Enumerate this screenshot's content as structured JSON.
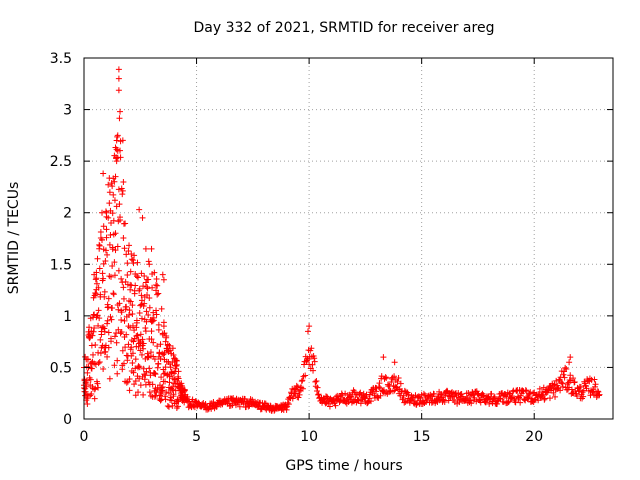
{
  "chart_data": {
    "type": "scatter",
    "title": "Day 332 of 2021, SRMTID for receiver areg",
    "xlabel": "GPS time / hours",
    "ylabel": "SRMTID / TECUs",
    "xlim": [
      0,
      23.5
    ],
    "ylim": [
      0,
      3.5
    ],
    "grid": true,
    "marker": "+",
    "marker_color": "#ff0000",
    "x_ticks": [
      0,
      5,
      10,
      15,
      20
    ],
    "x_tick_labels": [
      "0",
      "5",
      "10",
      "15",
      "20"
    ],
    "y_ticks": [
      0,
      0.5,
      1,
      1.5,
      2,
      2.5,
      3,
      3.5
    ],
    "y_tick_labels": [
      "0",
      "0.5",
      "1",
      "1.5",
      "2",
      "2.5",
      "3",
      "3.5"
    ],
    "series": [
      {
        "name": "areg",
        "profile_x": [
          0.0,
          0.3,
          0.6,
          0.9,
          1.2,
          1.4,
          1.6,
          1.8,
          2.0,
          2.3,
          2.6,
          2.9,
          3.2,
          3.5,
          3.8,
          4.2,
          4.6,
          5.0,
          5.5,
          6.0,
          6.5,
          7.0,
          7.5,
          8.0,
          8.5,
          9.0,
          9.3,
          9.6,
          9.8,
          10.0,
          10.2,
          10.5,
          11.0,
          11.5,
          12.0,
          12.5,
          13.0,
          13.3,
          13.6,
          13.9,
          14.2,
          14.6,
          15.0,
          15.5,
          16.0,
          16.5,
          17.0,
          17.5,
          18.0,
          18.5,
          19.0,
          19.5,
          20.0,
          20.5,
          21.0,
          21.3,
          21.6,
          22.0,
          22.3,
          22.6,
          22.9
        ],
        "profile_y": [
          0.3,
          0.6,
          0.9,
          1.2,
          1.4,
          1.6,
          1.9,
          1.4,
          1.0,
          0.9,
          0.8,
          0.9,
          0.8,
          0.6,
          0.45,
          0.3,
          0.18,
          0.13,
          0.12,
          0.14,
          0.16,
          0.16,
          0.15,
          0.12,
          0.1,
          0.12,
          0.25,
          0.3,
          0.45,
          0.65,
          0.5,
          0.2,
          0.15,
          0.2,
          0.22,
          0.2,
          0.25,
          0.35,
          0.3,
          0.35,
          0.22,
          0.18,
          0.2,
          0.2,
          0.22,
          0.2,
          0.2,
          0.22,
          0.2,
          0.2,
          0.22,
          0.22,
          0.22,
          0.25,
          0.3,
          0.4,
          0.35,
          0.25,
          0.3,
          0.32,
          0.25
        ],
        "outliers": [
          [
            1.55,
            3.39
          ],
          [
            1.55,
            3.3
          ],
          [
            1.6,
            2.98
          ],
          [
            1.5,
            2.75
          ],
          [
            1.45,
            2.7
          ],
          [
            1.5,
            2.6
          ],
          [
            1.45,
            2.5
          ],
          [
            1.4,
            2.35
          ],
          [
            1.35,
            2.3
          ],
          [
            0.85,
            2.38
          ],
          [
            2.45,
            2.03
          ],
          [
            1.0,
            2.0
          ],
          [
            0.8,
            2.0
          ],
          [
            1.7,
            2.18
          ],
          [
            1.2,
            1.9
          ],
          [
            3.0,
            1.65
          ],
          [
            3.55,
            1.35
          ],
          [
            3.5,
            1.4
          ],
          [
            2.75,
            1.65
          ],
          [
            2.9,
            1.5
          ],
          [
            0.45,
            1.4
          ],
          [
            0.55,
            1.42
          ],
          [
            2.6,
            1.95
          ],
          [
            2.1,
            1.6
          ],
          [
            10.0,
            0.9
          ],
          [
            9.95,
            0.85
          ],
          [
            13.3,
            0.6
          ],
          [
            13.8,
            0.55
          ],
          [
            21.6,
            0.6
          ],
          [
            21.55,
            0.55
          ]
        ]
      }
    ]
  }
}
